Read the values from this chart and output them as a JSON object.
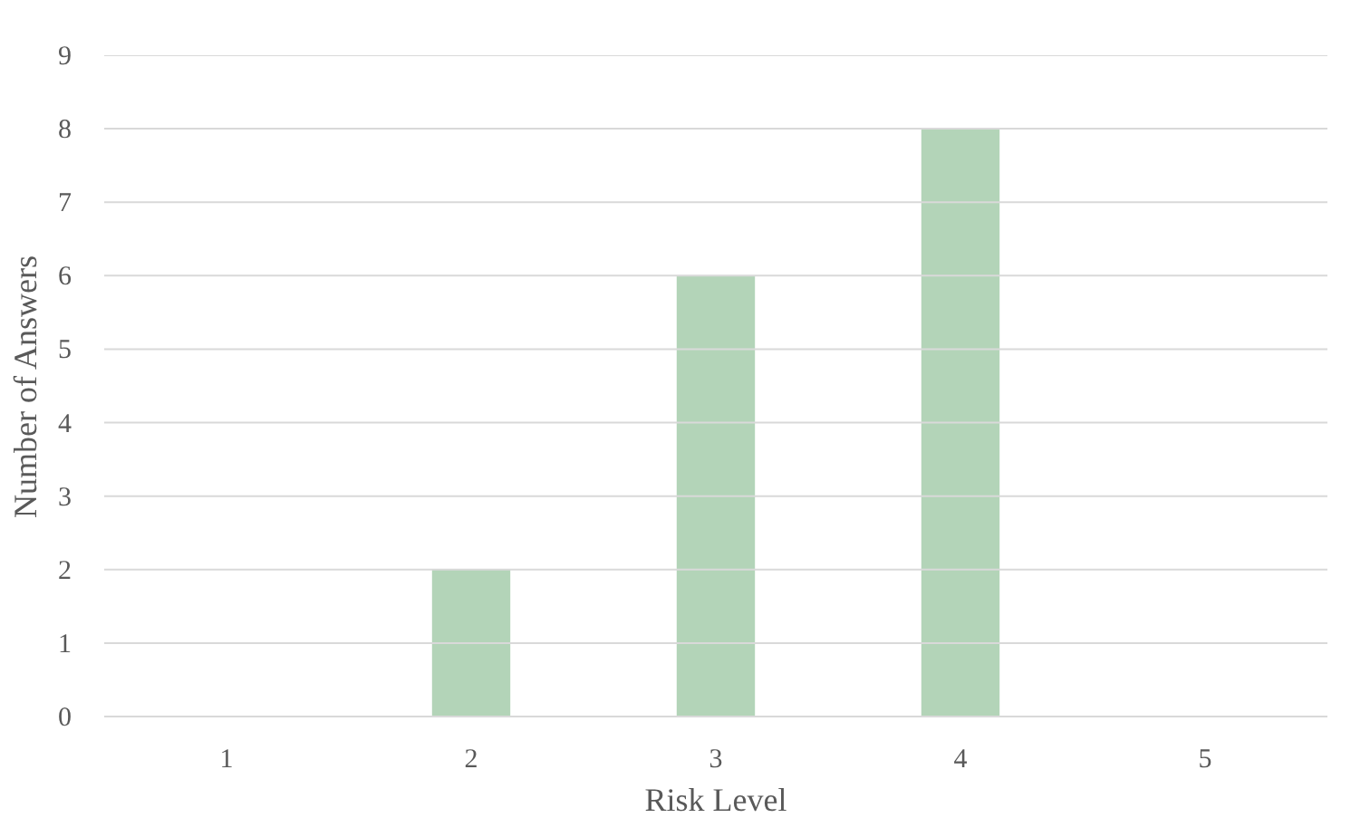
{
  "chart_data": {
    "type": "bar",
    "xlabel": "Risk Level",
    "ylabel": "Number of Answers",
    "categories": [
      "1",
      "2",
      "3",
      "4",
      "5"
    ],
    "values": [
      0,
      2,
      6,
      8,
      0
    ],
    "color": "#b3d4b8",
    "ylim": [
      0,
      9
    ],
    "yticks": [
      0,
      1,
      2,
      3,
      4,
      5,
      6,
      7,
      8,
      9
    ],
    "grid": "y"
  }
}
